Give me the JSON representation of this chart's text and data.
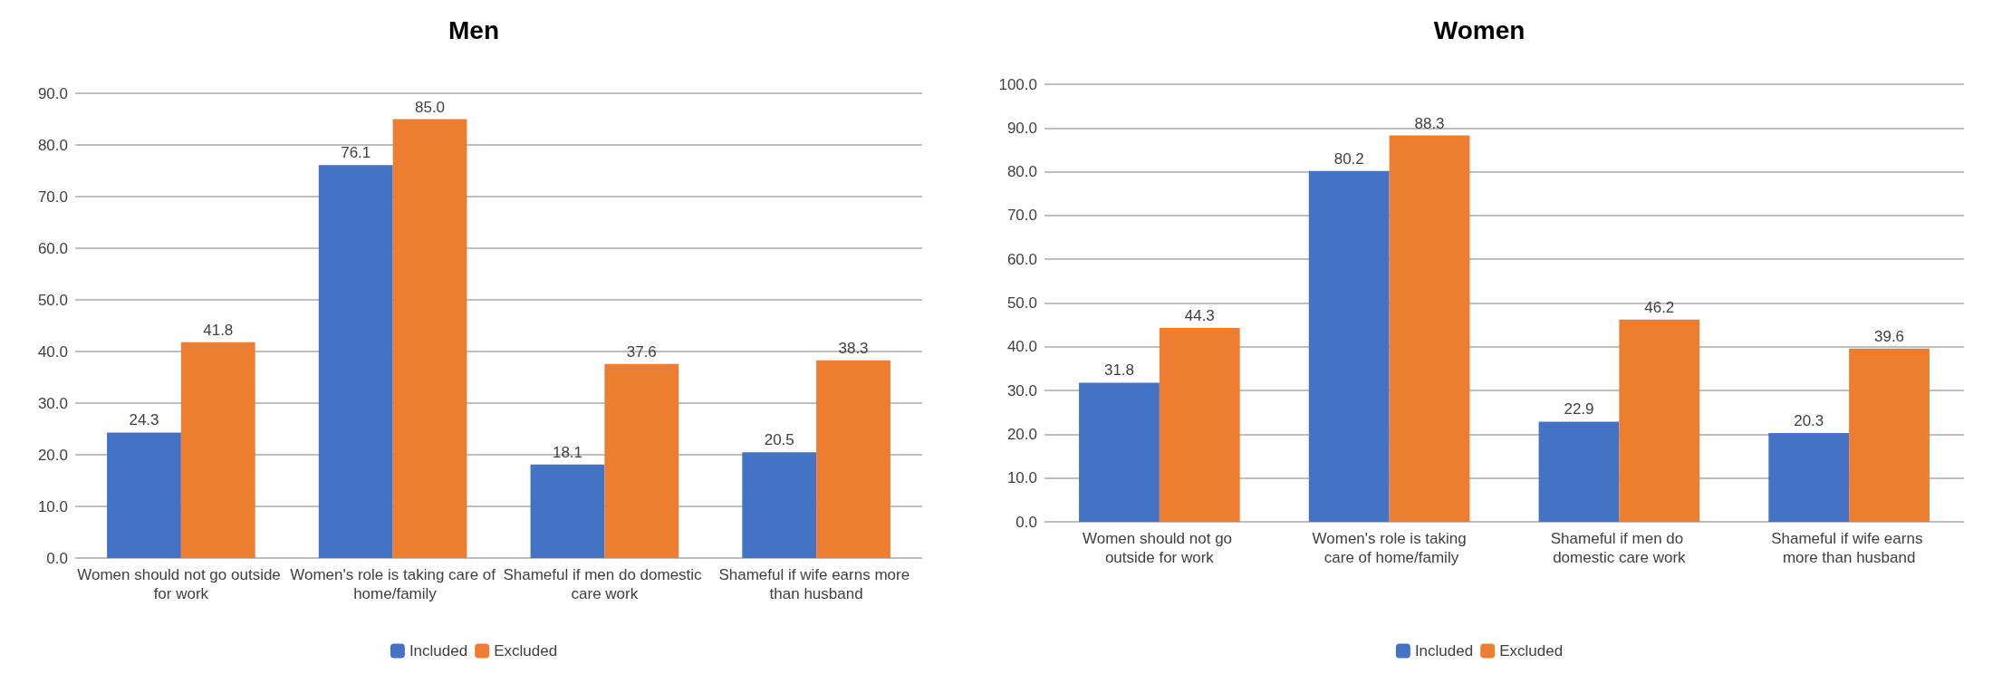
{
  "chart_data": [
    {
      "type": "bar",
      "title": "Men",
      "categories": [
        "Women should not go outside for work",
        "Women's role is taking care of home/family",
        "Shameful if men do domestic care work",
        "Shameful if wife earns more than husband"
      ],
      "series": [
        {
          "name": "Included",
          "color": "#4472c4",
          "values": [
            24.3,
            76.1,
            18.1,
            20.5
          ],
          "value_labels": [
            "24.3",
            "76.1",
            "18.1",
            "20.5"
          ]
        },
        {
          "name": "Excluded",
          "color": "#ed7d31",
          "values": [
            41.8,
            85.0,
            37.6,
            38.3
          ],
          "value_labels": [
            "41.8",
            "85.0",
            "37.6",
            "38.3"
          ]
        }
      ],
      "ylim": [
        0,
        90
      ],
      "yticks": [
        {
          "value": 0,
          "label": "0.0"
        },
        {
          "value": 10,
          "label": "10.0"
        },
        {
          "value": 20,
          "label": "20.0"
        },
        {
          "value": 30,
          "label": "30.0"
        },
        {
          "value": 40,
          "label": "40.0"
        },
        {
          "value": 50,
          "label": "50.0"
        },
        {
          "value": 60,
          "label": "60.0"
        },
        {
          "value": 70,
          "label": "70.0"
        },
        {
          "value": 80,
          "label": "80.0"
        },
        {
          "value": 90,
          "label": "90.0"
        }
      ],
      "grid": "y",
      "legend": "bottom"
    },
    {
      "type": "bar",
      "title": "Women",
      "categories": [
        "Women should not go outside for work",
        "Women's role is taking care of home/family",
        "Shameful if men do domestic care work",
        "Shameful if wife earns more than husband"
      ],
      "series": [
        {
          "name": "Included",
          "color": "#4472c4",
          "values": [
            31.8,
            80.2,
            22.9,
            20.3
          ],
          "value_labels": [
            "31.8",
            "80.2",
            "22.9",
            "20.3"
          ]
        },
        {
          "name": "Excluded",
          "color": "#ed7d31",
          "values": [
            44.3,
            88.3,
            46.2,
            39.6
          ],
          "value_labels": [
            "44.3",
            "88.3",
            "46.2",
            "39.6"
          ]
        }
      ],
      "ylim": [
        0,
        100
      ],
      "yticks": [
        {
          "value": 0,
          "label": "0.0"
        },
        {
          "value": 10,
          "label": "10.0"
        },
        {
          "value": 20,
          "label": "20.0"
        },
        {
          "value": 30,
          "label": "30.0"
        },
        {
          "value": 40,
          "label": "40.0"
        },
        {
          "value": 50,
          "label": "50.0"
        },
        {
          "value": 60,
          "label": "60.0"
        },
        {
          "value": 70,
          "label": "70.0"
        },
        {
          "value": 80,
          "label": "80.0"
        },
        {
          "value": 90,
          "label": "90.0"
        },
        {
          "value": 100,
          "label": "100.0"
        }
      ],
      "grid": "y",
      "legend": "bottom"
    }
  ]
}
